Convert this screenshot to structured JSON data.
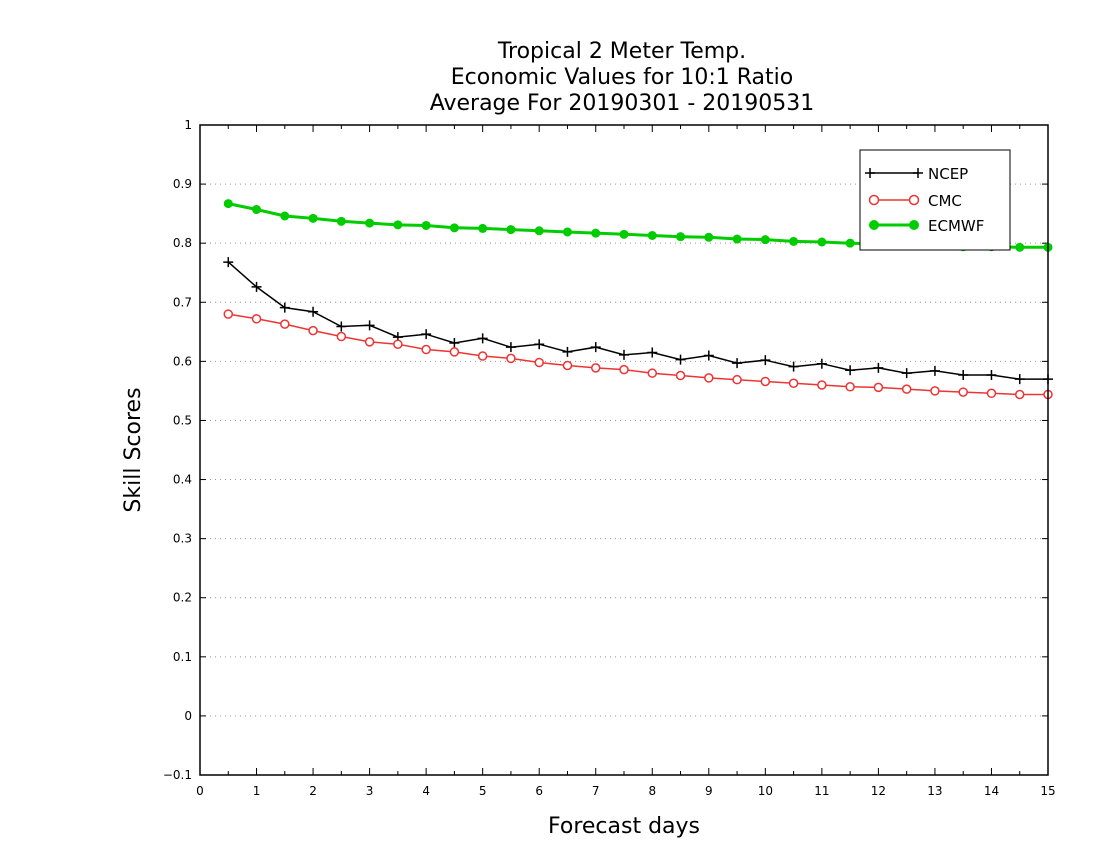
{
  "chart_data": {
    "type": "line",
    "title_lines": [
      "Tropical 2 Meter Temp.",
      "Economic Values for 10:1 Ratio",
      "Average For 20190301 - 20190531"
    ],
    "xlabel": "Forecast days",
    "ylabel": "Skill Scores",
    "xlim": [
      0,
      15
    ],
    "ylim": [
      -0.1,
      1
    ],
    "x_ticks": [
      "0",
      "1",
      "2",
      "3",
      "4",
      "5",
      "6",
      "7",
      "8",
      "9",
      "10",
      "11",
      "12",
      "13",
      "14",
      "15"
    ],
    "y_ticks": [
      "−0.1",
      "0",
      "0.1",
      "0.2",
      "0.3",
      "0.4",
      "0.5",
      "0.6",
      "0.7",
      "0.8",
      "0.9",
      "1"
    ],
    "grid": "horizontal dotted",
    "legend_position": "top-right",
    "x": [
      0.5,
      1,
      1.5,
      2,
      2.5,
      3,
      3.5,
      4,
      4.5,
      5,
      5.5,
      6,
      6.5,
      7,
      7.5,
      8,
      8.5,
      9,
      9.5,
      10,
      10.5,
      11,
      11.5,
      12,
      12.5,
      13,
      13.5,
      14,
      14.5,
      15
    ],
    "series": [
      {
        "name": "NCEP",
        "color": "#000000",
        "marker": "plus",
        "values": [
          0.768,
          0.726,
          0.691,
          0.684,
          0.659,
          0.661,
          0.641,
          0.646,
          0.631,
          0.639,
          0.624,
          0.629,
          0.616,
          0.624,
          0.611,
          0.615,
          0.603,
          0.61,
          0.597,
          0.602,
          0.591,
          0.596,
          0.585,
          0.589,
          0.58,
          0.584,
          0.577,
          0.577,
          0.57,
          0.57
        ]
      },
      {
        "name": "CMC",
        "color": "#ee3333",
        "marker": "open-circle",
        "values": [
          0.68,
          0.672,
          0.663,
          0.652,
          0.642,
          0.633,
          0.629,
          0.62,
          0.616,
          0.609,
          0.605,
          0.598,
          0.593,
          0.589,
          0.586,
          0.58,
          0.576,
          0.572,
          0.569,
          0.566,
          0.563,
          0.56,
          0.557,
          0.556,
          0.553,
          0.55,
          0.548,
          0.546,
          0.544,
          0.544
        ]
      },
      {
        "name": "ECMWF",
        "color": "#00cc00",
        "marker": "filled-circle",
        "values": [
          0.867,
          0.857,
          0.846,
          0.842,
          0.837,
          0.834,
          0.831,
          0.83,
          0.826,
          0.825,
          0.823,
          0.821,
          0.819,
          0.817,
          0.815,
          0.813,
          0.811,
          0.81,
          0.807,
          0.806,
          0.803,
          0.802,
          0.8,
          0.799,
          0.797,
          0.796,
          0.794,
          0.794,
          0.793,
          0.793
        ]
      }
    ]
  }
}
